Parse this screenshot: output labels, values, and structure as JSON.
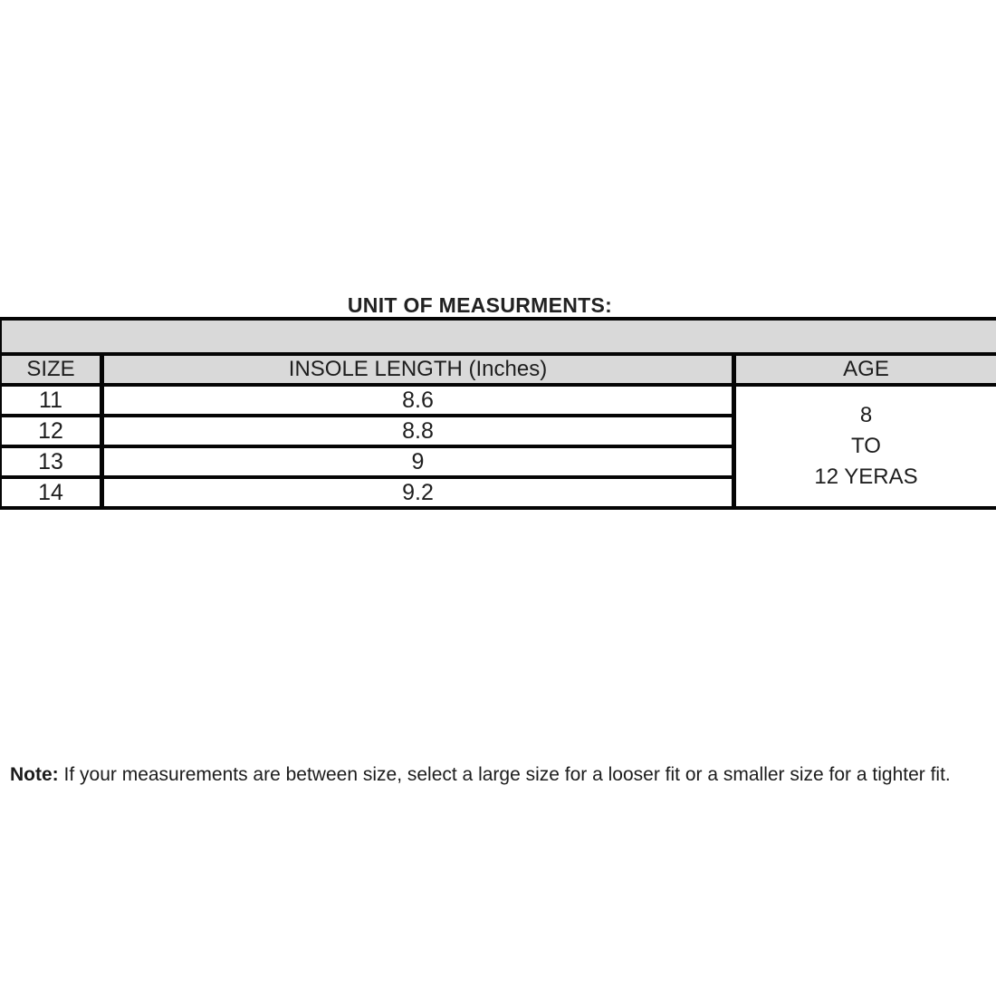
{
  "title": "UNIT OF MEASURMENTS:",
  "table": {
    "header": {
      "size": "SIZE",
      "insole": "INSOLE LENGTH (Inches)",
      "age": "AGE"
    },
    "rows": [
      {
        "size": "11",
        "insole_length": "8.6"
      },
      {
        "size": "12",
        "insole_length": "8.8"
      },
      {
        "size": "13",
        "insole_length": "9"
      },
      {
        "size": "14",
        "insole_length": "9.2"
      }
    ],
    "age_cell": {
      "line1": "8",
      "line2": "TO",
      "line3": "12 YERAS"
    }
  },
  "note": {
    "label": "Note:",
    "text": "If your measurements are between size, select a large size for a looser fit or a smaller size for a tighter fit."
  },
  "colors": {
    "band_gray": "#d9d9d9",
    "border_black": "#050505",
    "text": "#1e1e1e",
    "background": "#ffffff"
  }
}
